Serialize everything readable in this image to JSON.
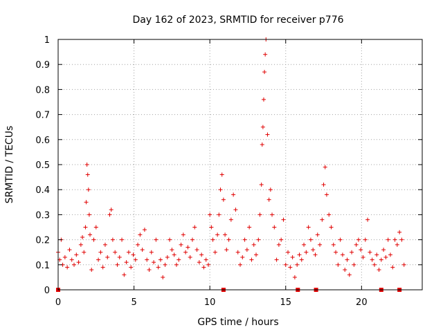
{
  "chart_data": {
    "type": "scatter",
    "title": "Day 162 of 2023, SRMTID for receiver p776",
    "xlabel": "GPS time / hours",
    "ylabel": "SRMTID / TECUs",
    "xlim": [
      0,
      24
    ],
    "ylim": [
      0,
      1
    ],
    "xticks": [
      0,
      5,
      10,
      15,
      20
    ],
    "xtick_labels": [
      "0",
      "5",
      "10",
      "15",
      "20"
    ],
    "yticks": [
      0,
      0.1,
      0.2,
      0.3,
      0.4,
      0.5,
      0.6,
      0.7,
      0.8,
      0.9,
      1
    ],
    "ytick_labels": [
      "0",
      "0.1",
      "0.2",
      "0.3",
      "0.4",
      "0.5",
      "0.6",
      "0.7",
      "0.8",
      "0.9",
      "1"
    ],
    "grid": true,
    "marker": "+",
    "color": "#e00000",
    "series": [
      {
        "name": "SRMTID",
        "x": [
          0.0,
          0.1,
          0.2,
          0.3,
          0.45,
          0.6,
          0.75,
          0.9,
          1.05,
          1.2,
          1.35,
          1.5,
          1.6,
          1.7,
          1.8,
          1.85,
          1.9,
          1.95,
          2.0,
          2.05,
          2.1,
          2.2,
          2.35,
          2.5,
          2.65,
          2.8,
          2.95,
          3.1,
          3.25,
          3.4,
          3.5,
          3.6,
          3.75,
          3.9,
          4.05,
          4.2,
          4.35,
          4.5,
          4.65,
          4.8,
          4.95,
          5.1,
          5.25,
          5.4,
          5.55,
          5.7,
          5.85,
          6.0,
          6.15,
          6.3,
          6.45,
          6.6,
          6.75,
          6.9,
          7.05,
          7.2,
          7.35,
          7.5,
          7.65,
          7.8,
          7.95,
          8.1,
          8.25,
          8.4,
          8.55,
          8.7,
          8.85,
          9.0,
          9.15,
          9.3,
          9.45,
          9.6,
          9.75,
          9.9,
          10.0,
          10.1,
          10.2,
          10.35,
          10.5,
          10.6,
          10.7,
          10.8,
          10.9,
          11.0,
          11.1,
          11.25,
          11.4,
          11.55,
          11.7,
          11.85,
          12.0,
          12.15,
          12.3,
          12.45,
          12.6,
          12.75,
          12.9,
          13.05,
          13.2,
          13.3,
          13.4,
          13.45,
          13.5,
          13.55,
          13.6,
          13.65,
          13.7,
          13.8,
          13.9,
          14.0,
          14.1,
          14.25,
          14.4,
          14.55,
          14.7,
          14.85,
          15.0,
          15.15,
          15.3,
          15.45,
          15.6,
          15.75,
          15.9,
          16.05,
          16.2,
          16.35,
          16.5,
          16.65,
          16.8,
          16.95,
          17.1,
          17.25,
          17.4,
          17.5,
          17.6,
          17.7,
          17.85,
          18.0,
          18.15,
          18.3,
          18.45,
          18.6,
          18.75,
          18.9,
          19.05,
          19.2,
          19.35,
          19.5,
          19.65,
          19.8,
          19.95,
          20.1,
          20.25,
          20.4,
          20.55,
          20.7,
          20.85,
          21.0,
          21.15,
          21.3,
          21.45,
          21.6,
          21.75,
          21.9,
          22.05,
          22.2,
          22.35,
          22.5,
          22.65,
          22.8
        ],
        "y": [
          0.15,
          0.12,
          0.2,
          0.1,
          0.13,
          0.09,
          0.16,
          0.12,
          0.1,
          0.14,
          0.11,
          0.18,
          0.21,
          0.15,
          0.25,
          0.35,
          0.5,
          0.46,
          0.4,
          0.3,
          0.22,
          0.08,
          0.2,
          0.25,
          0.12,
          0.15,
          0.09,
          0.18,
          0.13,
          0.3,
          0.32,
          0.2,
          0.15,
          0.1,
          0.13,
          0.2,
          0.06,
          0.11,
          0.15,
          0.09,
          0.14,
          0.12,
          0.18,
          0.22,
          0.16,
          0.24,
          0.12,
          0.08,
          0.15,
          0.11,
          0.2,
          0.09,
          0.12,
          0.05,
          0.1,
          0.13,
          0.2,
          0.16,
          0.14,
          0.1,
          0.12,
          0.18,
          0.22,
          0.15,
          0.17,
          0.13,
          0.2,
          0.25,
          0.16,
          0.11,
          0.14,
          0.09,
          0.12,
          0.1,
          0.3,
          0.25,
          0.2,
          0.15,
          0.22,
          0.3,
          0.4,
          0.46,
          0.36,
          0.22,
          0.16,
          0.2,
          0.28,
          0.38,
          0.32,
          0.15,
          0.1,
          0.13,
          0.2,
          0.16,
          0.25,
          0.12,
          0.18,
          0.14,
          0.2,
          0.3,
          0.42,
          0.58,
          0.65,
          0.76,
          0.87,
          0.94,
          1.0,
          0.62,
          0.36,
          0.4,
          0.3,
          0.25,
          0.12,
          0.18,
          0.2,
          0.28,
          0.1,
          0.15,
          0.09,
          0.13,
          0.05,
          0.1,
          0.14,
          0.12,
          0.18,
          0.15,
          0.25,
          0.2,
          0.16,
          0.14,
          0.22,
          0.18,
          0.28,
          0.42,
          0.49,
          0.38,
          0.3,
          0.25,
          0.18,
          0.15,
          0.1,
          0.2,
          0.14,
          0.08,
          0.12,
          0.06,
          0.15,
          0.1,
          0.18,
          0.2,
          0.16,
          0.13,
          0.2,
          0.28,
          0.15,
          0.12,
          0.1,
          0.14,
          0.08,
          0.12,
          0.16,
          0.13,
          0.2,
          0.14,
          0.09,
          0.2,
          0.18,
          0.23,
          0.2,
          0.1
        ]
      }
    ],
    "zero_markers_x": [
      0.0,
      10.9,
      15.8,
      17.0,
      21.3,
      22.5
    ]
  }
}
